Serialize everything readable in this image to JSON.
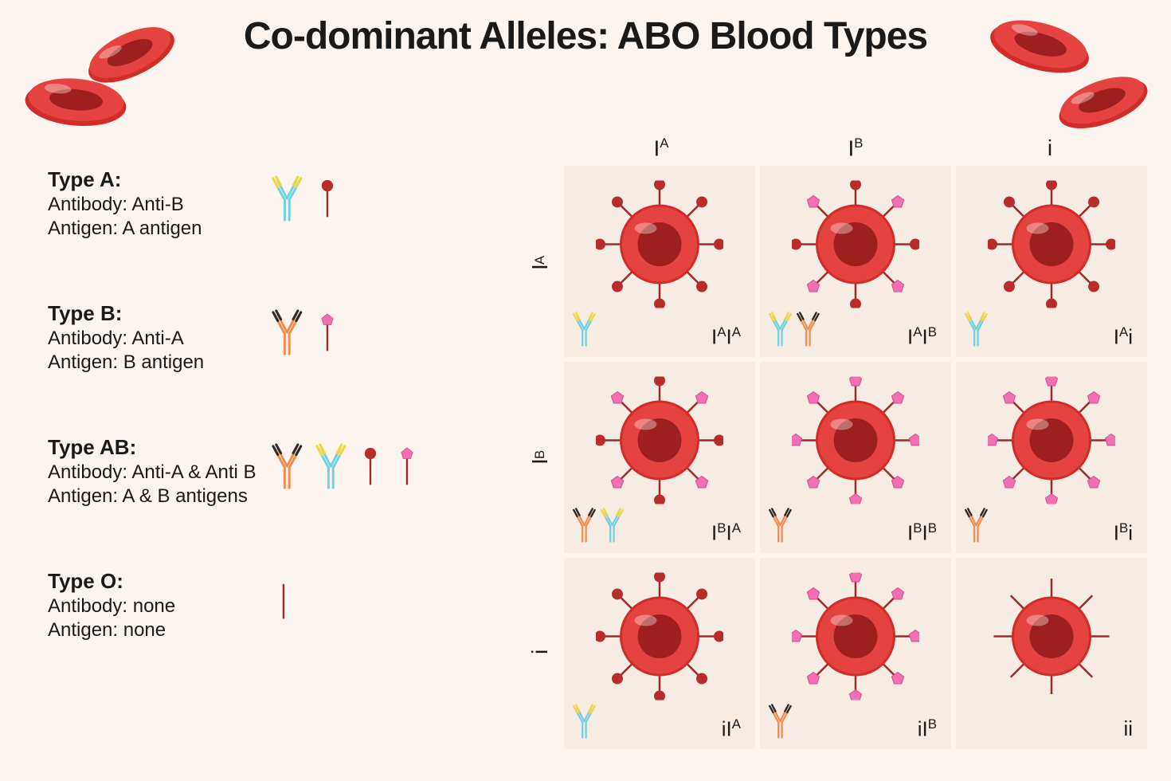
{
  "title": "Co-dominant Alleles: ABO Blood Types",
  "colors": {
    "background": "#fcf5ef",
    "cell_bg": "#f6ece4",
    "rbc_outer": "#e5433f",
    "rbc_rim": "#d12c2a",
    "rbc_inner": "#9e201e",
    "antigen_a": "#b82c2c",
    "antigen_b": "#f26fb1",
    "antibody_antiB_arm": "#6fd0e0",
    "antibody_antiB_tip": "#f4d63a",
    "antibody_antiA_arm": "#f08b4e",
    "antibody_antiA_tip": "#2b2b2b",
    "stick": "#9e2a2a",
    "text": "#1a1a1a"
  },
  "types": [
    {
      "heading": "Type A:",
      "antibody": "Antibody: Anti-B",
      "antigen": "Antigen: A antigen",
      "antibodies": [
        "antiB"
      ],
      "antigens": [
        "A"
      ]
    },
    {
      "heading": "Type B:",
      "antibody": "Antibody: Anti-A",
      "antigen": "Antigen: B antigen",
      "antibodies": [
        "antiA"
      ],
      "antigens": [
        "B"
      ]
    },
    {
      "heading": "Type AB:",
      "antibody": "Antibody: Anti-A & Anti B",
      "antigen": "Antigen: A & B antigens",
      "antibodies": [
        "antiA",
        "antiB"
      ],
      "antigens": [
        "A",
        "B"
      ]
    },
    {
      "heading": "Type O:",
      "antibody": "Antibody: none",
      "antigen": "Antigen: none",
      "antibodies": [],
      "antigens": [
        "none"
      ]
    }
  ],
  "grid": {
    "col_alleles": [
      "I<sup>A</sup>",
      "I<sup>B</sup>",
      "i"
    ],
    "row_alleles": [
      "I<sup>A</sup>",
      "I<sup>B</sup>",
      "i"
    ],
    "cells": [
      [
        {
          "antigens": [
            "A"
          ],
          "antibodies": [
            "antiB"
          ],
          "genotype": "I<sup>A</sup>I<sup>A</sup>"
        },
        {
          "antigens": [
            "A",
            "B"
          ],
          "antibodies": [
            "antiB",
            "antiA"
          ],
          "genotype": "I<sup>A</sup>I<sup>B</sup>"
        },
        {
          "antigens": [
            "A"
          ],
          "antibodies": [
            "antiB"
          ],
          "genotype": "I<sup>A</sup>i"
        }
      ],
      [
        {
          "antigens": [
            "A",
            "B"
          ],
          "antibodies": [
            "antiA",
            "antiB"
          ],
          "genotype": "I<sup>B</sup>I<sup>A</sup>"
        },
        {
          "antigens": [
            "B"
          ],
          "antibodies": [
            "antiA"
          ],
          "genotype": "I<sup>B</sup>I<sup>B</sup>"
        },
        {
          "antigens": [
            "B"
          ],
          "antibodies": [
            "antiA"
          ],
          "genotype": "I<sup>B</sup>i"
        }
      ],
      [
        {
          "antigens": [
            "A"
          ],
          "antibodies": [
            "antiB"
          ],
          "genotype": "iI<sup>A</sup>"
        },
        {
          "antigens": [
            "B"
          ],
          "antibodies": [
            "antiA"
          ],
          "genotype": "iI<sup>B</sup>"
        },
        {
          "antigens": [
            "none"
          ],
          "antibodies": [],
          "genotype": "ii"
        }
      ]
    ]
  },
  "icon_sizes": {
    "antibody_legend": 58,
    "antigen_legend": 58,
    "antibody_cell": 44,
    "rbc_cell_radius": 50,
    "antigen_spoke_count": 8
  }
}
